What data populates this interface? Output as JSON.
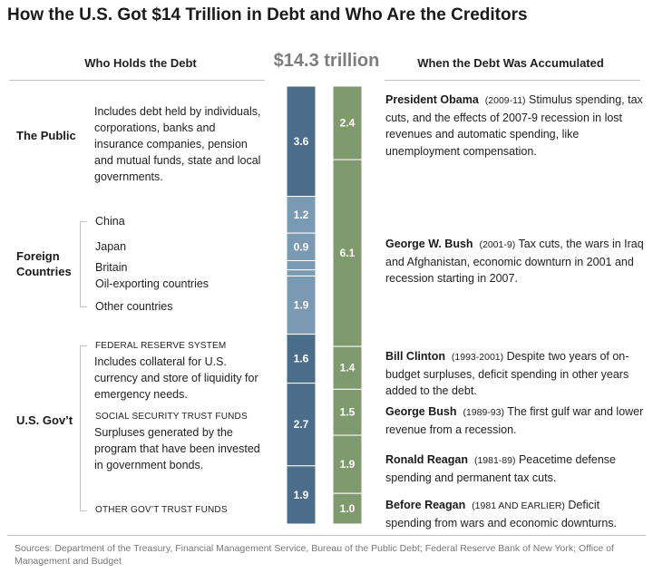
{
  "title": "How the U.S. Got $14 Trillion in Debt and Who Are the Creditors",
  "left_header": "Who Holds the Debt",
  "total": "$14.3 trillion",
  "right_header": "When the Debt Was Accumulated",
  "holders": {
    "public_label": "The Public",
    "public_desc": "Includes debt held by individuals, corporations, banks and insurance companies, pension and mutual funds, state and local governments.",
    "foreign_label": "Foreign Countries",
    "countries": [
      "China",
      "Japan",
      "Britain",
      "Oil-exporting countries",
      "Other countries"
    ],
    "gov_label": "U.S. Gov’t",
    "fed_caps": "FEDERAL RESERVE SYSTEM",
    "fed_desc": "Includes collateral for U.S. currency and store of liquidity for emergency needs.",
    "ss_caps": "SOCIAL SECURITY TRUST FUNDS",
    "ss_desc": "Surpluses generated by the program that have been invested in government bonds.",
    "other_caps": "OTHER GOV’T TRUST FUNDS"
  },
  "eras": [
    {
      "name": "President Obama",
      "years": "(2009-11)",
      "text": "Stimulus spending, tax cuts, and the effects of 2007-9 recession in lost revenues and automatic spending, like unemployment compensation."
    },
    {
      "name": "George W. Bush",
      "years": "(2001-9)",
      "text": "Tax cuts, the wars in Iraq and Afghanistan, economic downturn in 2001 and recession starting in 2007."
    },
    {
      "name": "Bill Clinton",
      "years": "(1993-2001)",
      "text": "Despite two years of on-budget surpluses, deficit spending in other years added to the debt."
    },
    {
      "name": "George Bush",
      "years": "(1989-93)",
      "text": "The first gulf war and lower revenue from a recession."
    },
    {
      "name": "Ronald Reagan",
      "years": "(1981-89)",
      "text": "Peacetime defense spending and permanent tax cuts."
    },
    {
      "name": "Before Reagan",
      "years": "(1981 AND EARLIER)",
      "text": "Deficit spending from wars and economic downturns."
    }
  ],
  "source": "Sources: Department of the Treasury, Financial Management Service, Bureau of the Public Debt; Federal Reserve Bank of New York; Office of Management and Budget",
  "colors": {
    "public": "#4a6e89",
    "foreign": "#7a99b2",
    "gov": "#4a6e89",
    "era": "#7f9b6e"
  },
  "chart_data": [
    {
      "type": "bar",
      "title": "Who Holds the Debt",
      "unit": "trillion",
      "segments": [
        {
          "group": "The Public",
          "label": "",
          "value": 3.6,
          "shown": "3.6"
        },
        {
          "group": "Foreign Countries",
          "label": "China",
          "value": 1.2,
          "shown": "1.2"
        },
        {
          "group": "Foreign Countries",
          "label": "Japan",
          "value": 0.9,
          "shown": "0.9"
        },
        {
          "group": "Foreign Countries",
          "label": "Britain",
          "value": 0.3,
          "shown": ""
        },
        {
          "group": "Foreign Countries",
          "label": "Oil-exporting countries",
          "value": 0.2,
          "shown": ""
        },
        {
          "group": "Foreign Countries",
          "label": "Other countries",
          "value": 1.9,
          "shown": "1.9"
        },
        {
          "group": "U.S. Gov’t",
          "label": "FEDERAL RESERVE SYSTEM",
          "value": 1.6,
          "shown": "1.6"
        },
        {
          "group": "U.S. Gov’t",
          "label": "SOCIAL SECURITY TRUST FUNDS",
          "value": 2.7,
          "shown": "2.7"
        },
        {
          "group": "U.S. Gov’t",
          "label": "OTHER GOV’T TRUST FUNDS",
          "value": 1.9,
          "shown": "1.9"
        }
      ]
    },
    {
      "type": "bar",
      "title": "When the Debt Was Accumulated",
      "unit": "trillion",
      "segments": [
        {
          "label": "President Obama",
          "value": 2.4,
          "shown": "2.4"
        },
        {
          "label": "George W. Bush",
          "value": 6.1,
          "shown": "6.1"
        },
        {
          "label": "Bill Clinton",
          "value": 1.4,
          "shown": "1.4"
        },
        {
          "label": "George Bush",
          "value": 1.5,
          "shown": "1.5"
        },
        {
          "label": "Ronald Reagan",
          "value": 1.9,
          "shown": "1.9"
        },
        {
          "label": "Before Reagan",
          "value": 1.0,
          "shown": "1.0"
        }
      ]
    }
  ]
}
